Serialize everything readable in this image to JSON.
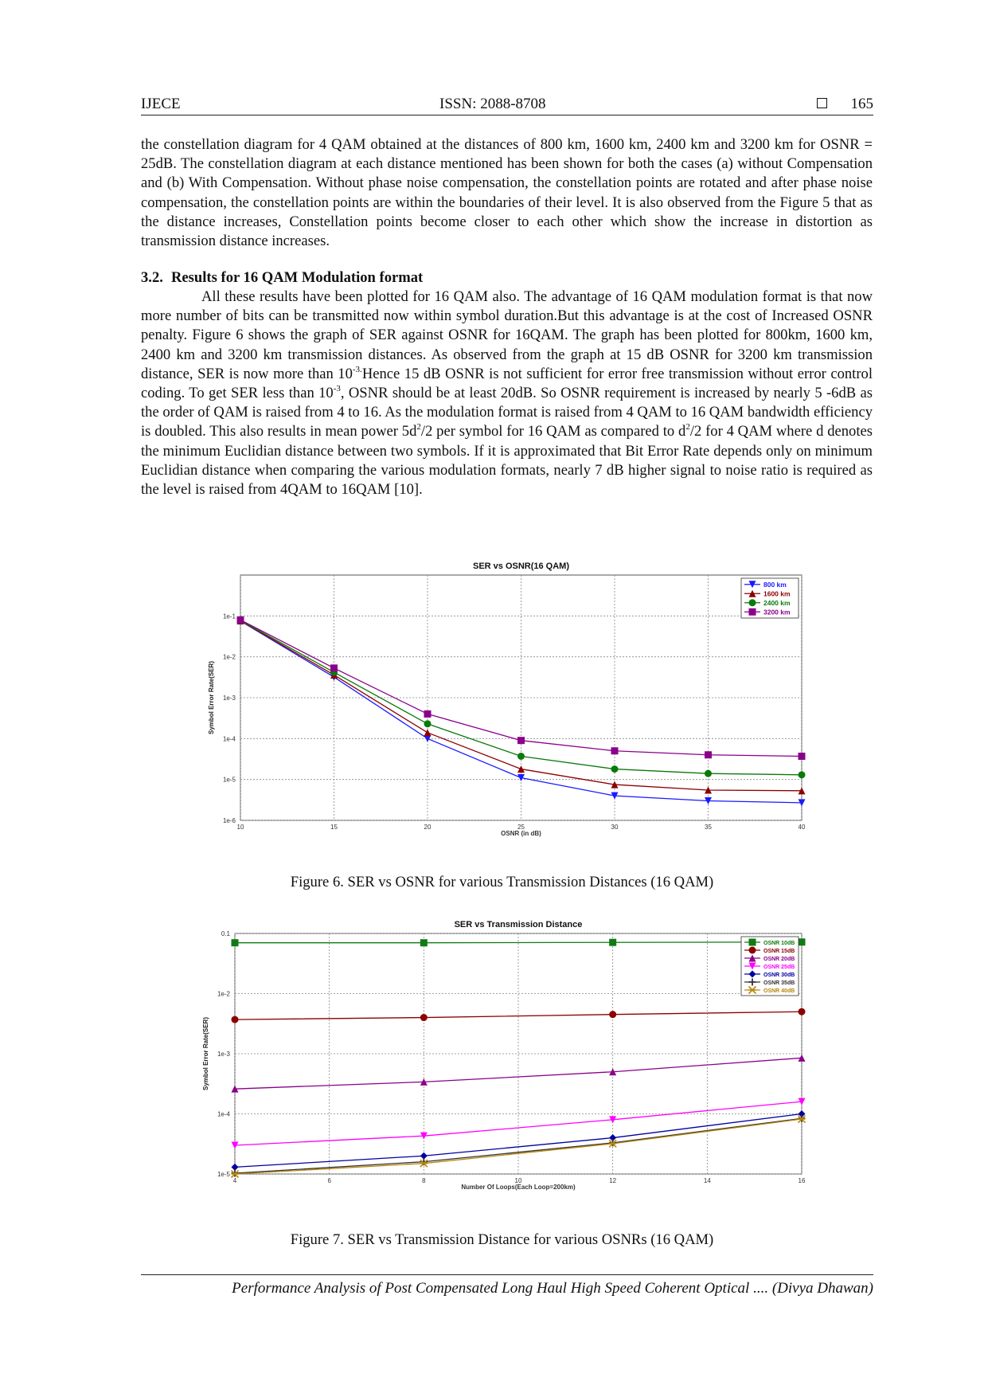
{
  "header": {
    "journal": "IJECE",
    "issn": "ISSN: 2088-8708",
    "page": "165"
  },
  "body": {
    "para1": "the constellation diagram for 4 QAM obtained at the distances of 800 km, 1600 km, 2400 km and 3200 km for OSNR = 25dB. The constellation diagram at each distance mentioned has been shown for both the cases (a) without Compensation and (b) With Compensation. Without phase noise compensation, the constellation points are rotated and after phase noise compensation, the constellation points are within the boundaries of their level. It is also observed from the Figure 5 that as the distance increases, Constellation points become closer to each other which show the increase in distortion as transmission distance increases.",
    "section_number": "3.2.",
    "section_title": "Results for 16 QAM Modulation format",
    "p2_a": "All these results have been plotted for 16 QAM also. The advantage of 16 QAM modulation format is that now more number of bits can be transmitted now within symbol duration.But this advantage is at the cost of Increased OSNR penalty. Figure 6 shows the graph of SER against OSNR for 16QAM. The graph has been plotted for 800km, 1600 km, 2400 km and 3200 km transmission distances. As observed from the graph at 15 dB OSNR for 3200 km transmission distance, SER is now more than 10",
    "p2_sup1": "-3.",
    "p2_b": "Hence 15 dB OSNR is not sufficient for error free transmission without error control coding. To get SER less than 10",
    "p2_sup2": "-3",
    "p2_c": ", OSNR should be at least 20dB. So OSNR requirement is increased by nearly 5 -6dB as the order of QAM is raised from 4 to 16. As the modulation format is raised from 4 QAM to 16 QAM bandwidth efficiency is doubled. This also results in mean power 5d",
    "p2_sup3": "2",
    "p2_d": "/2 per symbol for 16 QAM as compared to d",
    "p2_sup4": "2",
    "p2_e": "/2 for 4 QAM where d denotes the minimum Euclidian distance between two symbols. If it is approximated that Bit Error Rate depends only on minimum Euclidian distance when comparing the various modulation formats, nearly 7 dB higher signal to noise ratio is required as the level is raised from 4QAM to 16QAM [10]."
  },
  "captions": {
    "fig6": "Figure 6. SER vs OSNR for various Transmission Distances (16 QAM)",
    "fig7": "Figure 7. SER vs Transmission Distance for various OSNRs (16 QAM)"
  },
  "footer": "Performance Analysis of Post Compensated Long Haul High Speed Coherent Optical .... (Divya Dhawan)",
  "chart_data": [
    {
      "type": "line",
      "title": "SER vs OSNR(16 QAM)",
      "xlabel": "OSNR (in dB)",
      "ylabel": "Symbol Error Rate(SER)",
      "yscale": "log",
      "x": [
        10,
        15,
        20,
        25,
        30,
        35,
        40
      ],
      "xticks": [
        "10",
        "15",
        "20",
        "25",
        "30",
        "35",
        "40"
      ],
      "xlim": [
        10,
        40
      ],
      "ylim": [
        1e-06,
        1
      ],
      "yticks": [
        "1e-1",
        "1e-2",
        "1e-3",
        "1e-4",
        "1e-5",
        "1e-6"
      ],
      "grid": true,
      "legend": "top-right",
      "series": [
        {
          "name": "800 km",
          "color": "#1a1aff",
          "marker": "triangle-down",
          "values": [
            0.075,
            0.0032,
            0.0001,
            1.1e-05,
            4e-06,
            3e-06,
            2.7e-06
          ]
        },
        {
          "name": "1600 km",
          "color": "#8b0000",
          "marker": "triangle-up",
          "values": [
            0.076,
            0.0036,
            0.00014,
            1.8e-05,
            7.5e-06,
            5.5e-06,
            5.3e-06
          ]
        },
        {
          "name": "2400 km",
          "color": "#0a7a0a",
          "marker": "circle",
          "values": [
            0.078,
            0.0042,
            0.00023,
            3.7e-05,
            1.8e-05,
            1.4e-05,
            1.3e-05
          ]
        },
        {
          "name": "3200 km",
          "color": "#8b008b",
          "marker": "square",
          "values": [
            0.08,
            0.0053,
            0.0004,
            9e-05,
            5e-05,
            4e-05,
            3.7e-05
          ]
        }
      ]
    },
    {
      "type": "line",
      "title": "SER vs Transmission Distance",
      "xlabel": "Number Of Loops(Each Loop=200km)",
      "ylabel": "Symbol Error Rate(SER)",
      "yscale": "log",
      "x": [
        4,
        8,
        12,
        16
      ],
      "xticks": [
        "4",
        "6",
        "8",
        "10",
        "12",
        "14",
        "16"
      ],
      "xlim": [
        4,
        16
      ],
      "ylim": [
        1e-05,
        0.1
      ],
      "yticks": [
        "0.1",
        "1e-2",
        "1e-3",
        "1e-4",
        "1e-5"
      ],
      "grid": true,
      "legend": "top-right",
      "series": [
        {
          "name": "OSNR 10dB",
          "color": "#127a12",
          "marker": "square",
          "values": [
            0.07,
            0.07,
            0.071,
            0.072
          ]
        },
        {
          "name": "OSNR 15dB",
          "color": "#8b0000",
          "marker": "circle",
          "values": [
            0.0037,
            0.004,
            0.0045,
            0.005
          ]
        },
        {
          "name": "OSNR 20dB",
          "color": "#8b008b",
          "marker": "triangle-up",
          "values": [
            0.00026,
            0.00034,
            0.0005,
            0.00085
          ]
        },
        {
          "name": "OSNR 25dB",
          "color": "#ff00ff",
          "marker": "triangle-down",
          "values": [
            3e-05,
            4.3e-05,
            8e-05,
            0.00016
          ]
        },
        {
          "name": "OSNR 30dB",
          "color": "#0000a0",
          "marker": "diamond",
          "values": [
            1.3e-05,
            2e-05,
            4e-05,
            0.0001
          ]
        },
        {
          "name": "OSNR 35dB",
          "color": "#333333",
          "marker": "plus",
          "values": [
            1.03e-05,
            1.6e-05,
            3.3e-05,
            8.4e-05
          ]
        },
        {
          "name": "OSNR 40dB",
          "color": "#b8860b",
          "marker": "star",
          "values": [
            1e-05,
            1.5e-05,
            3.2e-05,
            8.2e-05
          ]
        }
      ]
    }
  ]
}
